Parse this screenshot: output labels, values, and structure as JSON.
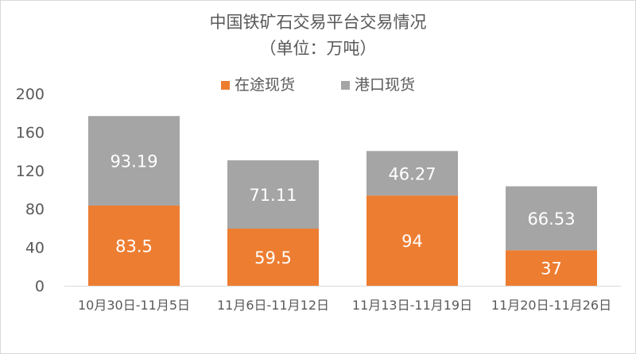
{
  "chart_data": {
    "type": "bar",
    "stacked": true,
    "title": "中国铁矿石交易平台交易情况",
    "subtitle": "（单位：万吨）",
    "categories": [
      "10月30日-11月5日",
      "11月6日-11月12日",
      "11月13日-11月19日",
      "11月20日-11月26日"
    ],
    "series": [
      {
        "name": "在途现货",
        "color": "#ed7d31",
        "values": [
          83.5,
          59.5,
          94,
          37
        ],
        "labels": [
          "83.5",
          "59.5",
          "94",
          "37"
        ]
      },
      {
        "name": "港口现货",
        "color": "#a5a5a5",
        "values": [
          93.19,
          71.11,
          46.27,
          66.53
        ],
        "labels": [
          "93.19",
          "71.11",
          "46.27",
          "66.53"
        ]
      }
    ],
    "yticks": [
      "0",
      "40",
      "80",
      "120",
      "160",
      "200"
    ],
    "ylim": [
      0,
      200
    ],
    "grid": false,
    "legend_position": "top"
  }
}
